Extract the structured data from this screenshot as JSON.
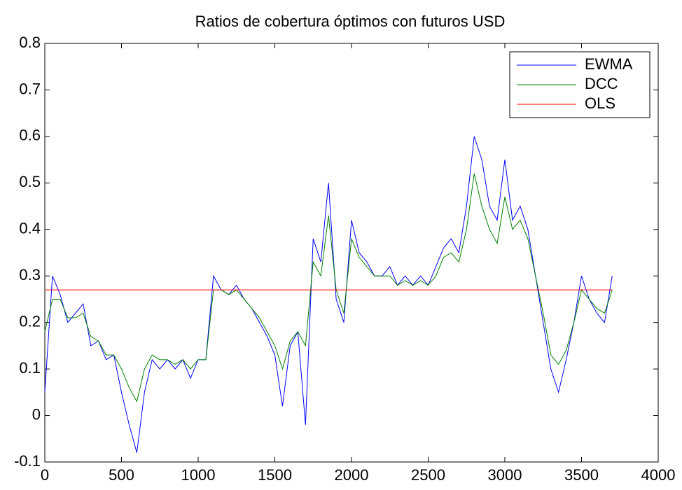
{
  "chart_data": {
    "type": "line",
    "title": "Ratios de cobertura óptimos con futuros USD",
    "x": [
      0,
      50,
      100,
      150,
      200,
      250,
      300,
      350,
      400,
      450,
      500,
      550,
      600,
      650,
      700,
      750,
      800,
      850,
      900,
      950,
      1000,
      1050,
      1100,
      1150,
      1200,
      1250,
      1300,
      1350,
      1400,
      1450,
      1500,
      1550,
      1600,
      1650,
      1700,
      1750,
      1800,
      1850,
      1900,
      1950,
      2000,
      2050,
      2100,
      2150,
      2200,
      2250,
      2300,
      2350,
      2400,
      2450,
      2500,
      2550,
      2600,
      2650,
      2700,
      2750,
      2800,
      2850,
      2900,
      2950,
      3000,
      3050,
      3100,
      3150,
      3200,
      3250,
      3300,
      3350,
      3400,
      3450,
      3500,
      3550,
      3600,
      3650,
      3700
    ],
    "series": [
      {
        "name": "EWMA",
        "color": "#0000ff",
        "values": [
          0.05,
          0.3,
          0.26,
          0.2,
          0.22,
          0.24,
          0.15,
          0.16,
          0.12,
          0.13,
          0.05,
          -0.02,
          -0.08,
          0.05,
          0.12,
          0.1,
          0.12,
          0.1,
          0.12,
          0.08,
          0.12,
          0.12,
          0.3,
          0.27,
          0.26,
          0.28,
          0.25,
          0.23,
          0.2,
          0.17,
          0.13,
          0.02,
          0.15,
          0.18,
          -0.02,
          0.38,
          0.33,
          0.5,
          0.25,
          0.2,
          0.42,
          0.35,
          0.33,
          0.3,
          0.3,
          0.32,
          0.28,
          0.3,
          0.28,
          0.3,
          0.28,
          0.32,
          0.36,
          0.38,
          0.35,
          0.45,
          0.6,
          0.55,
          0.45,
          0.42,
          0.55,
          0.42,
          0.45,
          0.4,
          0.3,
          0.2,
          0.1,
          0.05,
          0.12,
          0.2,
          0.3,
          0.25,
          0.22,
          0.2,
          0.3
        ]
      },
      {
        "name": "DCC",
        "color": "#008000",
        "values": [
          0.18,
          0.25,
          0.25,
          0.21,
          0.21,
          0.22,
          0.17,
          0.16,
          0.13,
          0.13,
          0.1,
          0.06,
          0.03,
          0.1,
          0.13,
          0.12,
          0.12,
          0.11,
          0.12,
          0.1,
          0.12,
          0.12,
          0.27,
          0.27,
          0.26,
          0.27,
          0.25,
          0.23,
          0.21,
          0.18,
          0.15,
          0.1,
          0.16,
          0.18,
          0.15,
          0.33,
          0.3,
          0.43,
          0.27,
          0.22,
          0.38,
          0.34,
          0.32,
          0.3,
          0.3,
          0.3,
          0.28,
          0.29,
          0.28,
          0.29,
          0.28,
          0.3,
          0.34,
          0.35,
          0.33,
          0.4,
          0.52,
          0.45,
          0.4,
          0.37,
          0.47,
          0.4,
          0.42,
          0.38,
          0.3,
          0.22,
          0.13,
          0.11,
          0.14,
          0.2,
          0.27,
          0.25,
          0.23,
          0.22,
          0.27
        ]
      },
      {
        "name": "OLS",
        "color": "#ff0000",
        "values": [
          0.27,
          0.27,
          0.27,
          0.27,
          0.27,
          0.27,
          0.27,
          0.27,
          0.27,
          0.27,
          0.27,
          0.27,
          0.27,
          0.27,
          0.27,
          0.27,
          0.27,
          0.27,
          0.27,
          0.27,
          0.27,
          0.27,
          0.27,
          0.27,
          0.27,
          0.27,
          0.27,
          0.27,
          0.27,
          0.27,
          0.27,
          0.27,
          0.27,
          0.27,
          0.27,
          0.27,
          0.27,
          0.27,
          0.27,
          0.27,
          0.27,
          0.27,
          0.27,
          0.27,
          0.27,
          0.27,
          0.27,
          0.27,
          0.27,
          0.27,
          0.27,
          0.27,
          0.27,
          0.27,
          0.27,
          0.27,
          0.27,
          0.27,
          0.27,
          0.27,
          0.27,
          0.27,
          0.27,
          0.27,
          0.27,
          0.27,
          0.27,
          0.27,
          0.27,
          0.27,
          0.27,
          0.27,
          0.27,
          0.27,
          0.27
        ]
      }
    ],
    "xlim": [
      0,
      4000
    ],
    "xticks": [
      0,
      500,
      1000,
      1500,
      2000,
      2500,
      3000,
      3500,
      4000
    ],
    "ylim": [
      -0.1,
      0.8
    ],
    "yticks": [
      -0.1,
      0,
      0.1,
      0.2,
      0.3,
      0.4,
      0.5,
      0.6,
      0.7,
      0.8
    ],
    "legend": "upper right",
    "grid": false
  }
}
